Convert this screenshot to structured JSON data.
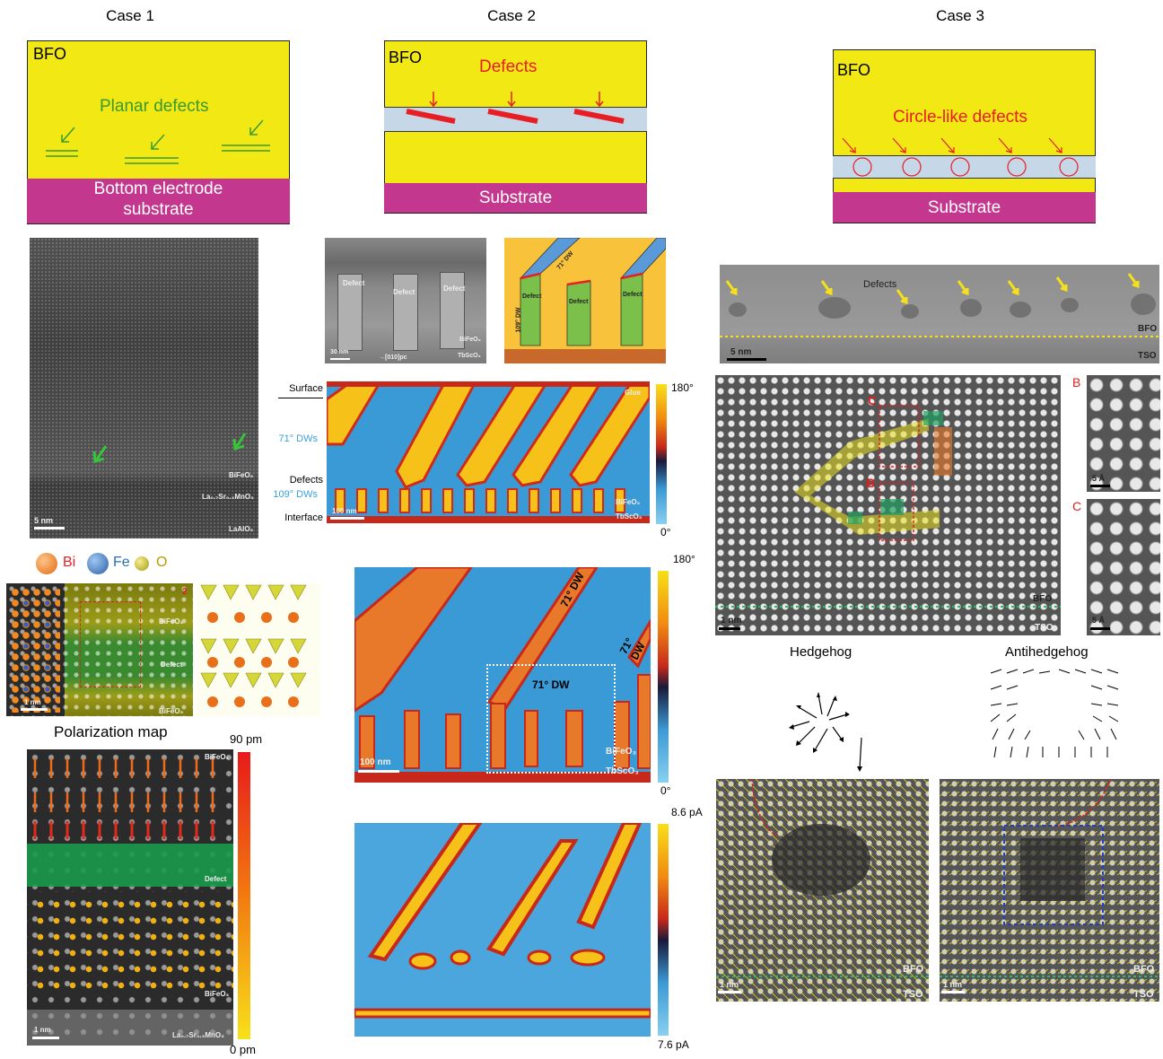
{
  "headings": {
    "case1": "Case 1",
    "case2": "Case 2",
    "case3": "Case 3"
  },
  "case1": {
    "schematic": {
      "bfo": "BFO",
      "defects": "Planar defects",
      "bottom_line1": "Bottom electrode",
      "bottom_line2": "substrate"
    },
    "stem": {
      "layer1": "BiFeO₃",
      "layer2": "La₀.₇Sr₀.₃MnO₃",
      "layer3": "LaAlO₃",
      "scale": "5 nm"
    },
    "legend": {
      "bi": "Bi",
      "fe": "Fe",
      "o": "O"
    },
    "atomic": {
      "top": "BiFeO₃",
      "mid": "Defect",
      "bot": "BiFeO₃",
      "scale": "1 nm",
      "panel_no": "2"
    },
    "polarization": {
      "title": "Polarization map",
      "top": "BiFeO₃",
      "defect": "Defect",
      "mid": "BiFeO₃",
      "bot": "La₀.₇Sr₀.₃MnO₃",
      "scale": "1 nm",
      "cb_max": "90 pm",
      "cb_min": "0 pm"
    }
  },
  "case2": {
    "schematic": {
      "bfo": "BFO",
      "defects": "Defects",
      "substrate": "Substrate"
    },
    "tem": {
      "defect": "Defect",
      "film": "BiFeO₃",
      "sub": "TbScO₃",
      "scale": "30 nm",
      "dir": "→[010]pc"
    },
    "model": {
      "defect": "Defect",
      "dw71": "71° DW",
      "dw109": "109° DW"
    },
    "pfm1": {
      "surface": "Surface",
      "dws71": "71° DWs",
      "defects": "Defects",
      "dws109": "109° DWs",
      "interface": "Interface",
      "glue": "Glue",
      "film": "BiFeO₃",
      "sub": "TbScO₃",
      "scale": "100 nm",
      "cb_max": "180°",
      "cb_min": "0°"
    },
    "pfm2": {
      "dw_a": "71° DW",
      "dw_b": "71° DW",
      "dw_c": "71° DW",
      "film": "BiFeO₃",
      "sub": "TbScO₃",
      "scale": "100 nm",
      "cb_max": "180°",
      "cb_min": "0°"
    },
    "cafm": {
      "cb_max": "8.6 pA",
      "cb_min": "7.6 pA"
    }
  },
  "case3": {
    "schematic": {
      "bfo": "BFO",
      "defects": "Circle-like defects",
      "substrate": "Substrate"
    },
    "tem": {
      "defects": "Defects",
      "bfo": "BFO",
      "tso": "TSO",
      "scale": "5 nm"
    },
    "haadf": {
      "b": "B",
      "c": "C",
      "bfo": "BFO",
      "tso": "TSO",
      "scale": "1 nm"
    },
    "insets": {
      "b": "B",
      "c": "C",
      "scale_b": "5 Å",
      "scale_c": "5 Å"
    },
    "hedgehog": {
      "title": "Hedgehog",
      "bfo": "BFO",
      "tso": "TSO",
      "scale": "1 nm"
    },
    "antihedgehog": {
      "title": "Antihedgehog",
      "bfo": "BFO",
      "tso": "TSO",
      "scale": "1 nm"
    }
  }
}
